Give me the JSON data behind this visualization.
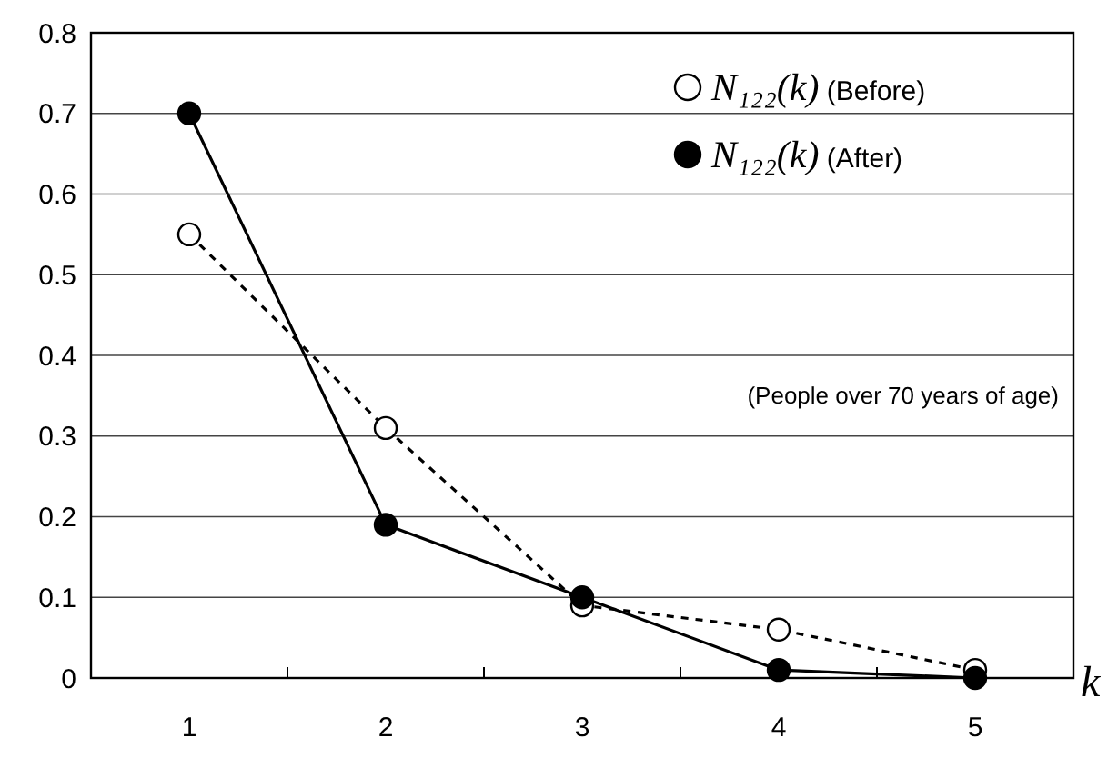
{
  "chart_data": {
    "type": "line",
    "xlabel": "k",
    "categories": [
      "1",
      "2",
      "3",
      "4",
      "5"
    ],
    "series": [
      {
        "name": "N₁₂₂(k) (Before)",
        "color": "#000000",
        "values": [
          0.55,
          0.31,
          0.09,
          0.06,
          0.01
        ],
        "line_style": "dashed"
      },
      {
        "name": "N₁₂₂(k) (After)",
        "color": "#000000",
        "values": [
          0.7,
          0.19,
          0.1,
          0.01,
          0.0
        ],
        "line_style": "solid"
      }
    ],
    "ylim": [
      0,
      0.8
    ],
    "yticks": [
      {
        "value": 0,
        "label": "0"
      },
      0.1,
      0.2,
      0.3,
      0.4,
      0.5,
      0.6,
      0.7,
      0.8
    ],
    "grid": "y",
    "legend": "top right",
    "marker": "circle",
    "annotations": [
      "(People over 70 years of age)"
    ]
  }
}
